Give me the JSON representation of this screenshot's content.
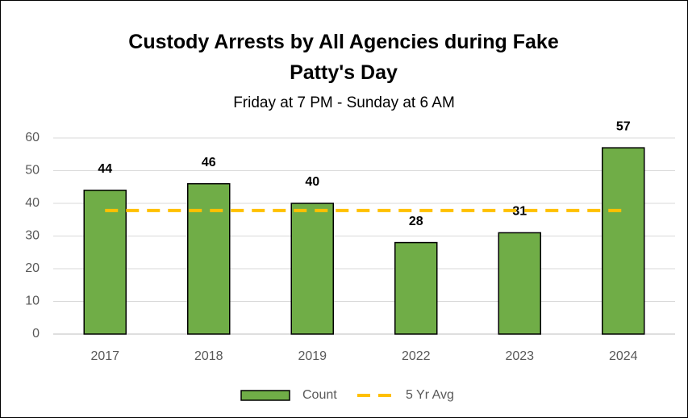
{
  "chart_data": {
    "type": "bar",
    "title": "Custody Arrests by All Agencies during Fake Patty's Day",
    "subtitle": "Friday at 7 PM - Sunday at 6 AM",
    "categories": [
      "2017",
      "2018",
      "2019",
      "2022",
      "2023",
      "2024"
    ],
    "series": [
      {
        "name": "Count",
        "type": "bar",
        "color": "#70ad47",
        "values": [
          44,
          46,
          40,
          28,
          31,
          57
        ]
      },
      {
        "name": "5 Yr Avg",
        "type": "line",
        "color": "#ffc000",
        "values": [
          37.8,
          37.8,
          37.8,
          37.8,
          37.8,
          37.8
        ]
      }
    ],
    "ylim": [
      0,
      60
    ],
    "yticks": [
      0,
      10,
      20,
      30,
      40,
      50,
      60
    ],
    "grid": true,
    "legend": "bottom"
  }
}
